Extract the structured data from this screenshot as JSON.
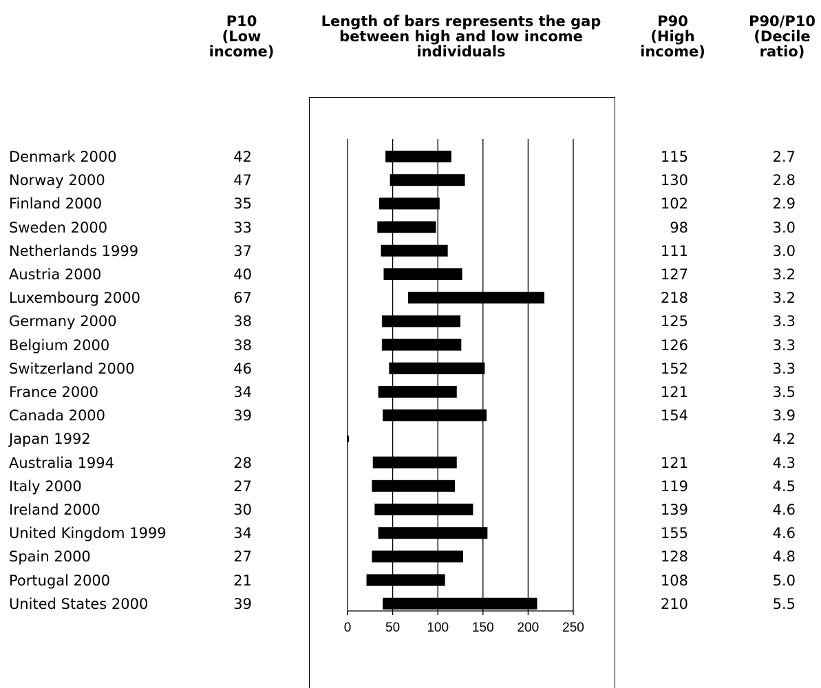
{
  "headers": {
    "p10": [
      "P10",
      "(Low",
      "income)"
    ],
    "chart": [
      "Length of bars represents the gap",
      "between high and low income",
      "individuals"
    ],
    "p90": [
      "P90",
      "(High",
      "income)"
    ],
    "ratio": [
      "P90/P10",
      "(Decile",
      "ratio)"
    ]
  },
  "rows": [
    {
      "country": "Denmark 2000",
      "p10": "42",
      "p90": "115",
      "ratio": "2.7"
    },
    {
      "country": "Norway 2000",
      "p10": "47",
      "p90": "130",
      "ratio": "2.8"
    },
    {
      "country": "Finland 2000",
      "p10": "35",
      "p90": "102",
      "ratio": "2.9"
    },
    {
      "country": "Sweden 2000",
      "p10": "33",
      "p90": "98",
      "ratio": "3.0"
    },
    {
      "country": "Netherlands 1999",
      "p10": "37",
      "p90": "111",
      "ratio": "3.0"
    },
    {
      "country": "Austria 2000",
      "p10": "40",
      "p90": "127",
      "ratio": "3.2"
    },
    {
      "country": "Luxembourg 2000",
      "p10": "67",
      "p90": "218",
      "ratio": "3.2"
    },
    {
      "country": "Germany 2000",
      "p10": "38",
      "p90": "125",
      "ratio": "3.3"
    },
    {
      "country": "Belgium 2000",
      "p10": "38",
      "p90": "126",
      "ratio": "3.3"
    },
    {
      "country": "Switzerland 2000",
      "p10": "46",
      "p90": "152",
      "ratio": "3.3"
    },
    {
      "country": "France 2000",
      "p10": "34",
      "p90": "121",
      "ratio": "3.5"
    },
    {
      "country": "Canada 2000",
      "p10": "39",
      "p90": "154",
      "ratio": "3.9"
    },
    {
      "country": "Japan 1992",
      "p10": "",
      "p90": "",
      "ratio": "4.2"
    },
    {
      "country": "Australia 1994",
      "p10": "28",
      "p90": "121",
      "ratio": "4.3"
    },
    {
      "country": "Italy 2000",
      "p10": "27",
      "p90": "119",
      "ratio": "4.5"
    },
    {
      "country": "Ireland 2000",
      "p10": "30",
      "p90": "139",
      "ratio": "4.6"
    },
    {
      "country": "United Kingdom 1999",
      "p10": "34",
      "p90": "155",
      "ratio": "4.6"
    },
    {
      "country": "Spain 2000",
      "p10": "27",
      "p90": "128",
      "ratio": "4.8"
    },
    {
      "country": "Portugal 2000",
      "p10": "21",
      "p90": "108",
      "ratio": "5.0"
    },
    {
      "country": "United States 2000",
      "p10": "39",
      "p90": "210",
      "ratio": "5.5"
    }
  ],
  "chart_data": {
    "type": "bar",
    "orientation": "horizontal",
    "subtype": "floating-range",
    "categories": [
      "Denmark 2000",
      "Norway 2000",
      "Finland 2000",
      "Sweden 2000",
      "Netherlands 1999",
      "Austria 2000",
      "Luxembourg 2000",
      "Germany 2000",
      "Belgium 2000",
      "Switzerland 2000",
      "France 2000",
      "Canada 2000",
      "Japan 1992",
      "Australia 1994",
      "Italy 2000",
      "Ireland 2000",
      "United Kingdom 1999",
      "Spain 2000",
      "Portugal 2000",
      "United States 2000"
    ],
    "series": [
      {
        "name": "P10 (Low income)",
        "values": [
          42,
          47,
          35,
          33,
          37,
          40,
          67,
          38,
          38,
          46,
          34,
          39,
          null,
          28,
          27,
          30,
          34,
          27,
          21,
          39
        ]
      },
      {
        "name": "P90 (High income)",
        "values": [
          115,
          130,
          102,
          98,
          111,
          127,
          218,
          125,
          126,
          152,
          121,
          154,
          null,
          121,
          119,
          139,
          155,
          128,
          108,
          210
        ]
      }
    ],
    "xlim": [
      0,
      250
    ],
    "xticks": [
      0,
      50,
      100,
      150,
      200,
      250
    ],
    "xtick_labels": [
      "0",
      "50",
      "100",
      "150",
      "200",
      "250"
    ],
    "title": "Length of bars represents the gap between high and low income individuals",
    "grid": "vertical",
    "bar_color": "#000000"
  }
}
